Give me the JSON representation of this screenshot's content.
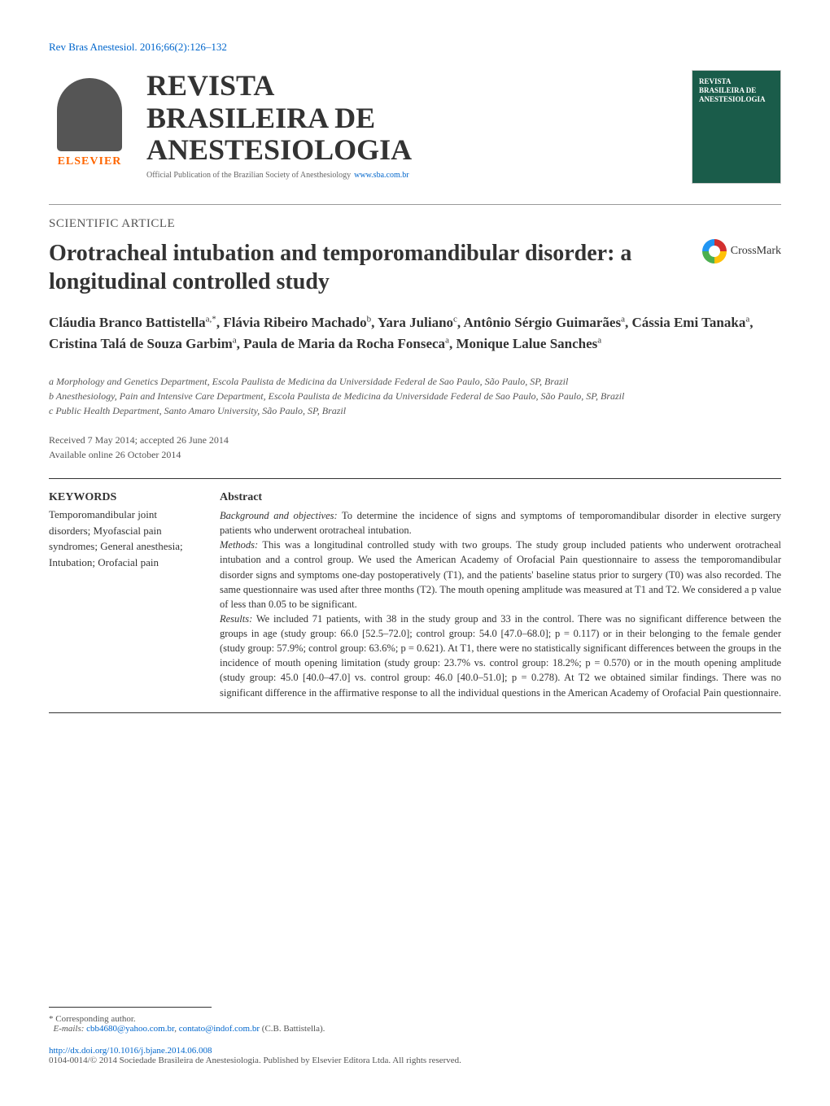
{
  "citation": "Rev Bras Anestesiol. 2016;66(2):126–132",
  "publisher": {
    "logo_text": "ELSEVIER",
    "logo_color": "#ff6600"
  },
  "journal": {
    "title_line1": "REVISTA",
    "title_line2": "BRASILEIRA DE",
    "title_line3": "ANESTESIOLOGIA",
    "subtitle": "Official Publication of the Brazilian Society of Anesthesiology",
    "url": "www.sba.com.br"
  },
  "cover": {
    "title": "REVISTA BRASILEIRA DE ANESTESIOLOGIA",
    "bg_color": "#1a5c4a"
  },
  "article_type": "SCIENTIFIC ARTICLE",
  "title": "Orotracheal intubation and temporomandibular disorder: a longitudinal controlled study",
  "crossmark_label": "CrossMark",
  "authors_html": "Cláudia Branco Battistella<sup>a,*</sup>, Flávia Ribeiro Machado<sup>b</sup>, Yara Juliano<sup>c</sup>, Antônio Sérgio Guimarães<sup>a</sup>, Cássia Emi Tanaka<sup>a</sup>, Cristina Talá de Souza Garbim<sup>a</sup>, Paula de Maria da Rocha Fonseca<sup>a</sup>, Monique Lalue Sanches<sup>a</sup>",
  "affiliations": [
    "a Morphology and Genetics Department, Escola Paulista de Medicina da Universidade Federal de Sao Paulo, São Paulo, SP, Brazil",
    "b Anesthesiology, Pain and Intensive Care Department, Escola Paulista de Medicina da Universidade Federal de Sao Paulo, São Paulo, SP, Brazil",
    "c Public Health Department, Santo Amaro University, São Paulo, SP, Brazil"
  ],
  "dates": {
    "received": "Received 7 May 2014; accepted 26 June 2014",
    "online": "Available online 26 October 2014"
  },
  "keywords": {
    "heading": "KEYWORDS",
    "list": "Temporomandibular joint disorders; Myofascial pain syndromes; General anesthesia; Intubation; Orofacial pain"
  },
  "abstract": {
    "heading": "Abstract",
    "background_label": "Background and objectives:",
    "background": " To determine the incidence of signs and symptoms of temporomandibular disorder in elective surgery patients who underwent orotracheal intubation.",
    "methods_label": "Methods:",
    "methods": " This was a longitudinal controlled study with two groups. The study group included patients who underwent orotracheal intubation and a control group. We used the American Academy of Orofacial Pain questionnaire to assess the temporomandibular disorder signs and symptoms one-day postoperatively (T1), and the patients' baseline status prior to surgery (T0) was also recorded. The same questionnaire was used after three months (T2). The mouth opening amplitude was measured at T1 and T2. We considered a p value of less than 0.05 to be significant.",
    "results_label": "Results:",
    "results": " We included 71 patients, with 38 in the study group and 33 in the control. There was no significant difference between the groups in age (study group: 66.0 [52.5–72.0]; control group: 54.0 [47.0–68.0]; p = 0.117) or in their belonging to the female gender (study group: 57.9%; control group: 63.6%; p = 0.621). At T1, there were no statistically significant differences between the groups in the incidence of mouth opening limitation (study group: 23.7% vs. control group: 18.2%; p = 0.570) or in the mouth opening amplitude (study group: 45.0 [40.0–47.0] vs. control group: 46.0 [40.0–51.0]; p = 0.278). At T2 we obtained similar findings. There was no significant difference in the affirmative response to all the individual questions in the American Academy of Orofacial Pain questionnaire."
  },
  "footer": {
    "corresponding": "Corresponding author.",
    "emails_label": "E-mails:",
    "email1": "cbb4680@yahoo.com.br",
    "email2": "contato@indof.com.br",
    "email_name": " (C.B. Battistella).",
    "doi": "http://dx.doi.org/10.1016/j.bjane.2014.06.008",
    "copyright": "0104-0014/© 2014 Sociedade Brasileira de Anestesiologia. Published by Elsevier Editora Ltda. All rights reserved."
  },
  "colors": {
    "link": "#0066cc",
    "text": "#333333",
    "orange": "#ff6600"
  }
}
